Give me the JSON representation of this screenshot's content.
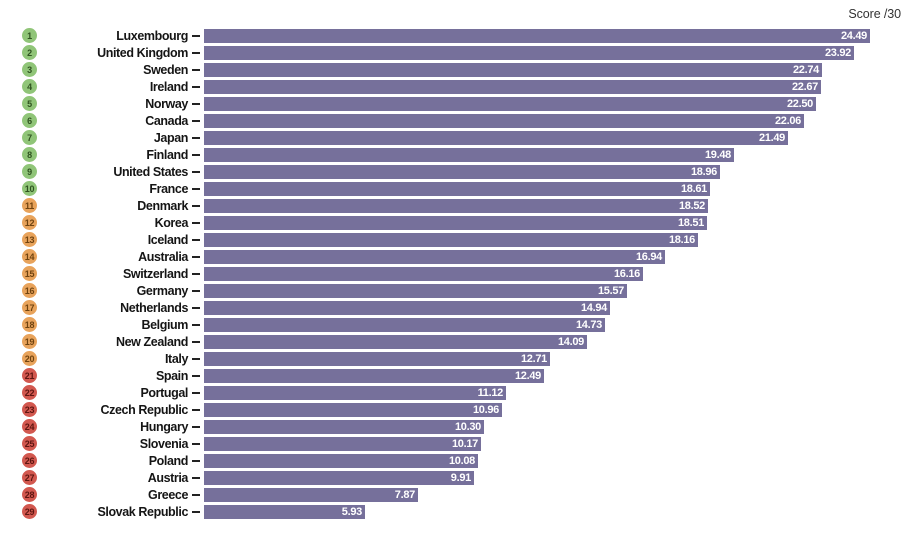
{
  "header": {
    "score_label": "Score /30"
  },
  "chart_data": {
    "type": "bar",
    "orientation": "horizontal",
    "title": "Score /30",
    "xlabel": "Score /30",
    "ylabel": "",
    "xlim": [
      0,
      30
    ],
    "grid": false,
    "legend": "none",
    "bar_color": "#76709b",
    "value_label_color": "#ffffff",
    "categories": [
      "Luxembourg",
      "United Kingdom",
      "Sweden",
      "Ireland",
      "Norway",
      "Canada",
      "Japan",
      "Finland",
      "United States",
      "France",
      "Denmark",
      "Korea",
      "Iceland",
      "Australia",
      "Switzerland",
      "Germany",
      "Netherlands",
      "Belgium",
      "New Zealand",
      "Italy",
      "Spain",
      "Portugal",
      "Czech Republic",
      "Hungary",
      "Slovenia",
      "Poland",
      "Austria",
      "Greece",
      "Slovak Republic"
    ],
    "values": [
      24.49,
      23.92,
      22.74,
      22.67,
      22.5,
      22.06,
      21.49,
      19.48,
      18.96,
      18.61,
      18.52,
      18.51,
      18.16,
      16.94,
      16.16,
      15.57,
      14.94,
      14.73,
      14.09,
      12.71,
      12.49,
      11.12,
      10.96,
      10.3,
      10.17,
      10.08,
      9.91,
      7.87,
      5.93
    ],
    "ranks": [
      1,
      2,
      3,
      4,
      5,
      6,
      7,
      8,
      9,
      10,
      11,
      12,
      13,
      14,
      15,
      16,
      17,
      18,
      19,
      20,
      21,
      22,
      23,
      24,
      25,
      26,
      27,
      28,
      29
    ],
    "rank_groups": [
      {
        "min": 1,
        "max": 10,
        "fill": "#90c578",
        "text": "#2f5320"
      },
      {
        "min": 11,
        "max": 20,
        "fill": "#e8a35b",
        "text": "#70430f"
      },
      {
        "min": 21,
        "max": 29,
        "fill": "#d2584f",
        "text": "#5e1510"
      }
    ]
  }
}
